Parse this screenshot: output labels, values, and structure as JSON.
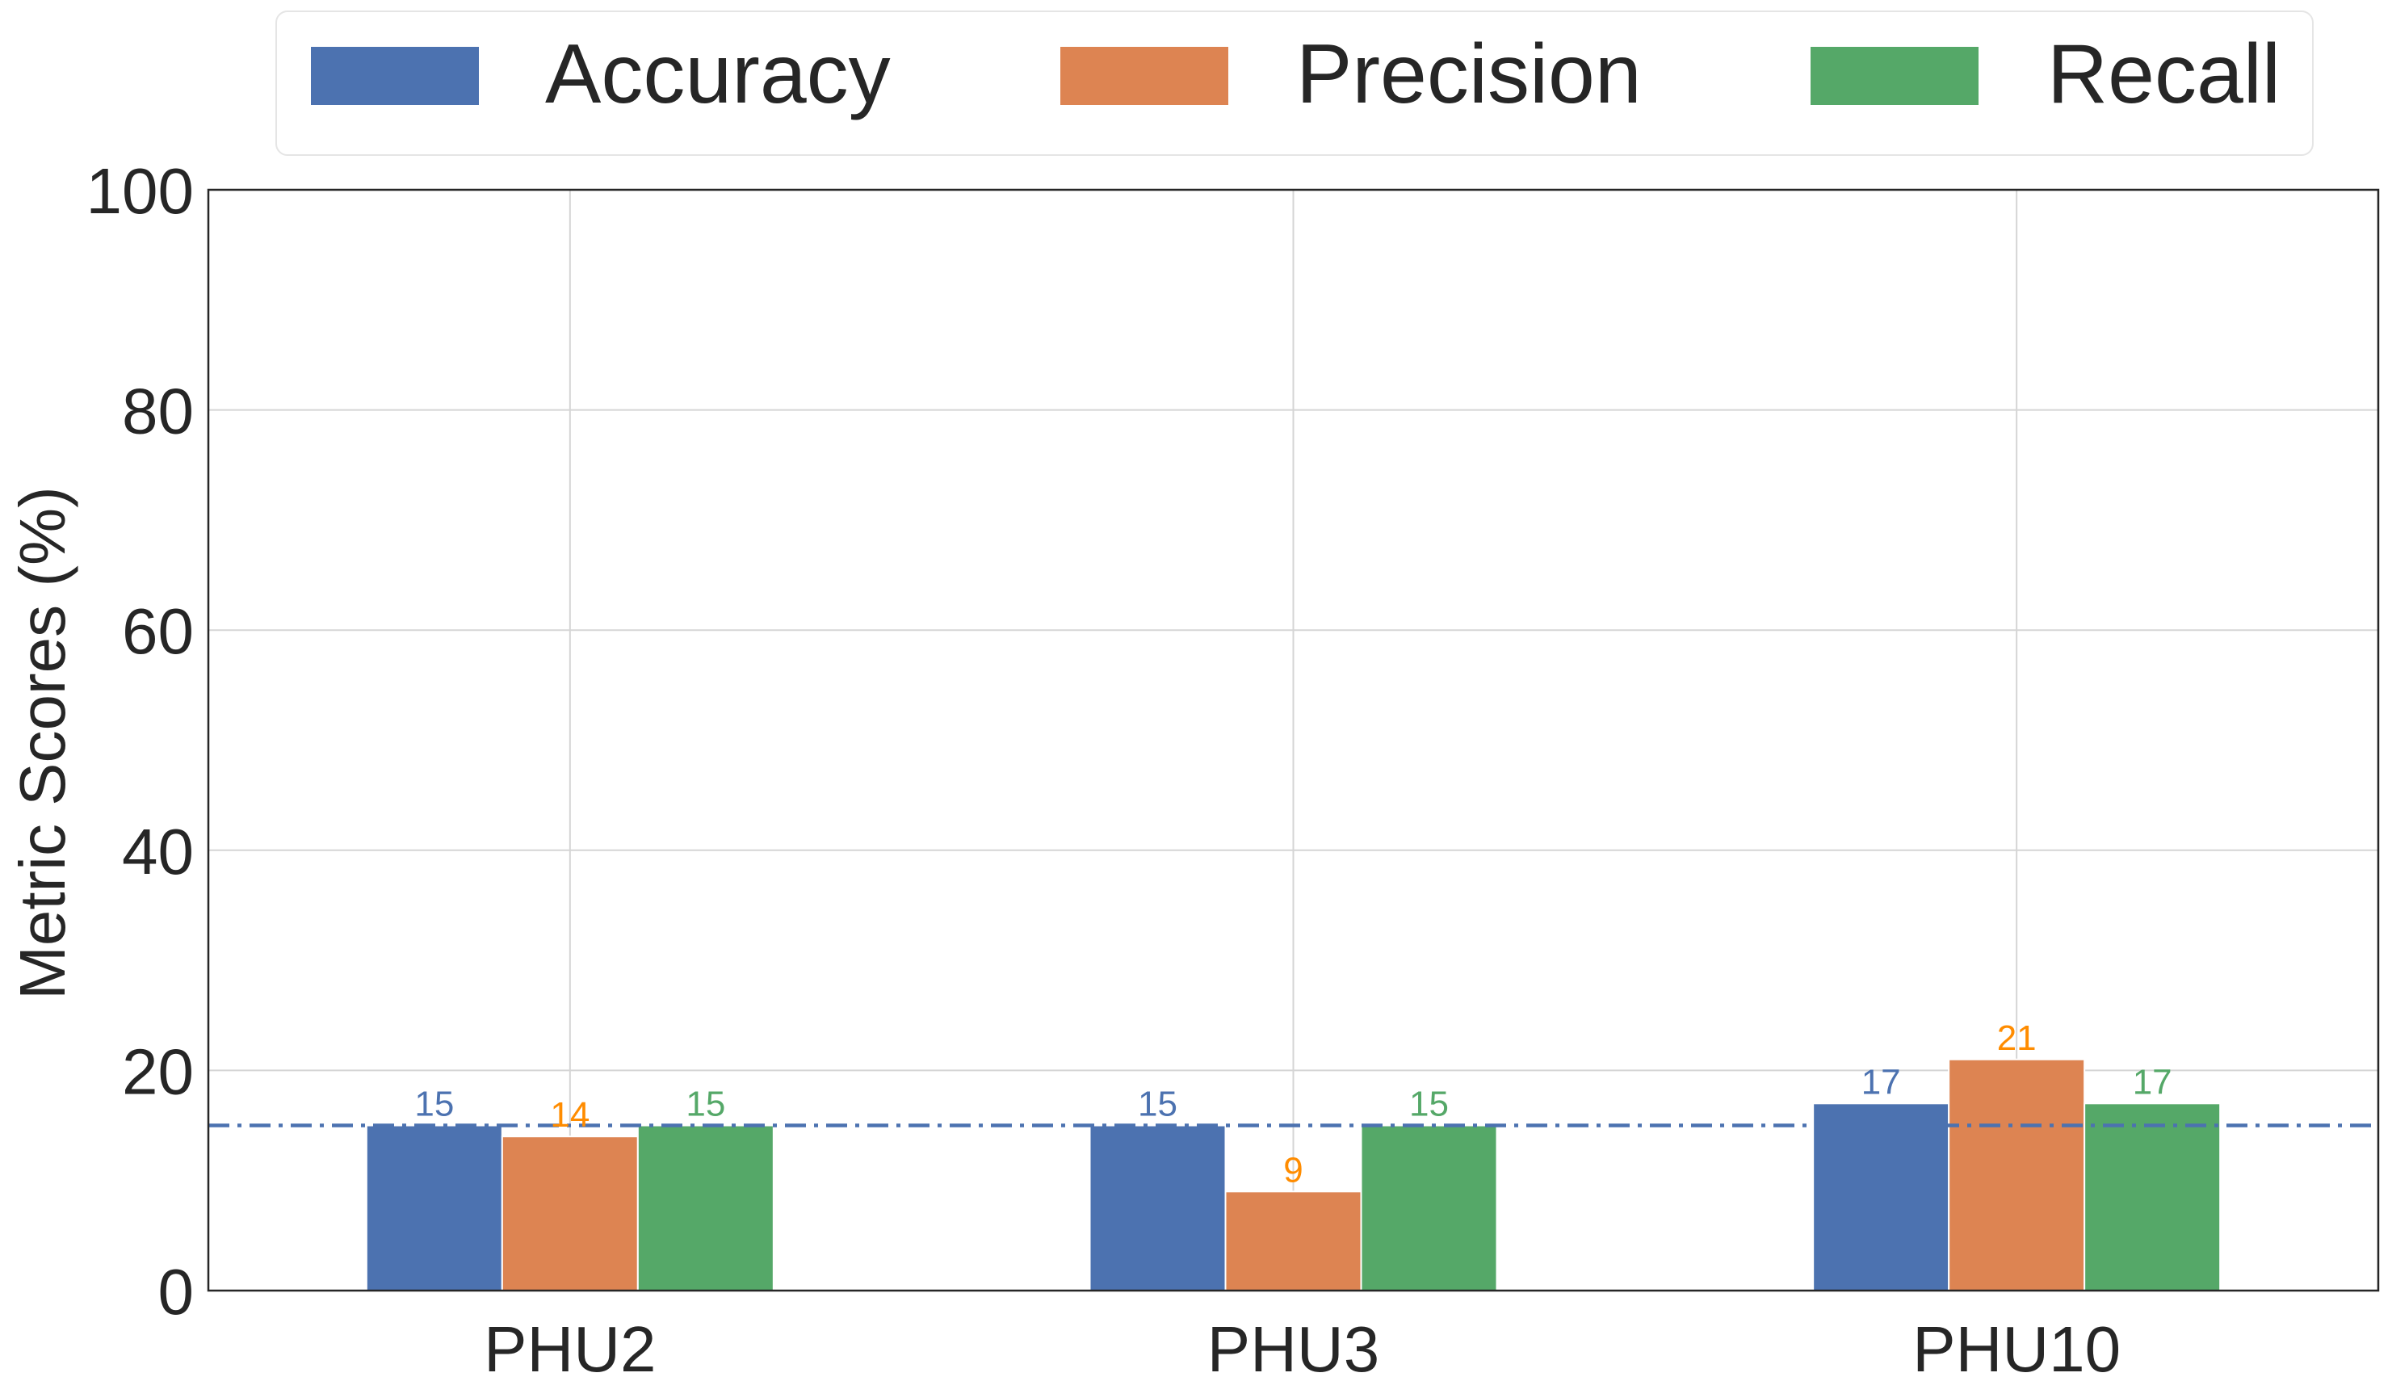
{
  "chart_data": {
    "type": "bar",
    "title": "",
    "xlabel": "",
    "ylabel": "Metric Scores (%)",
    "categories": [
      "PHU2",
      "PHU3",
      "PHU10"
    ],
    "series": [
      {
        "name": "Accuracy",
        "values": [
          15,
          15,
          17
        ],
        "color": "#4c72b0",
        "label_color": "#4c72b0"
      },
      {
        "name": "Precision",
        "values": [
          14,
          9,
          21
        ],
        "color": "#dd8452",
        "label_color": "#ff8c00"
      },
      {
        "name": "Recall",
        "values": [
          15,
          15,
          17
        ],
        "color": "#55a868",
        "label_color": "#55a868"
      }
    ],
    "ylim": [
      0,
      100
    ],
    "yticks": [
      0,
      20,
      40,
      60,
      80,
      100
    ],
    "reference_line": {
      "value": 15,
      "style": "dash-dot",
      "color": "#4c72b0"
    },
    "grid": true,
    "legend": "top-center"
  }
}
